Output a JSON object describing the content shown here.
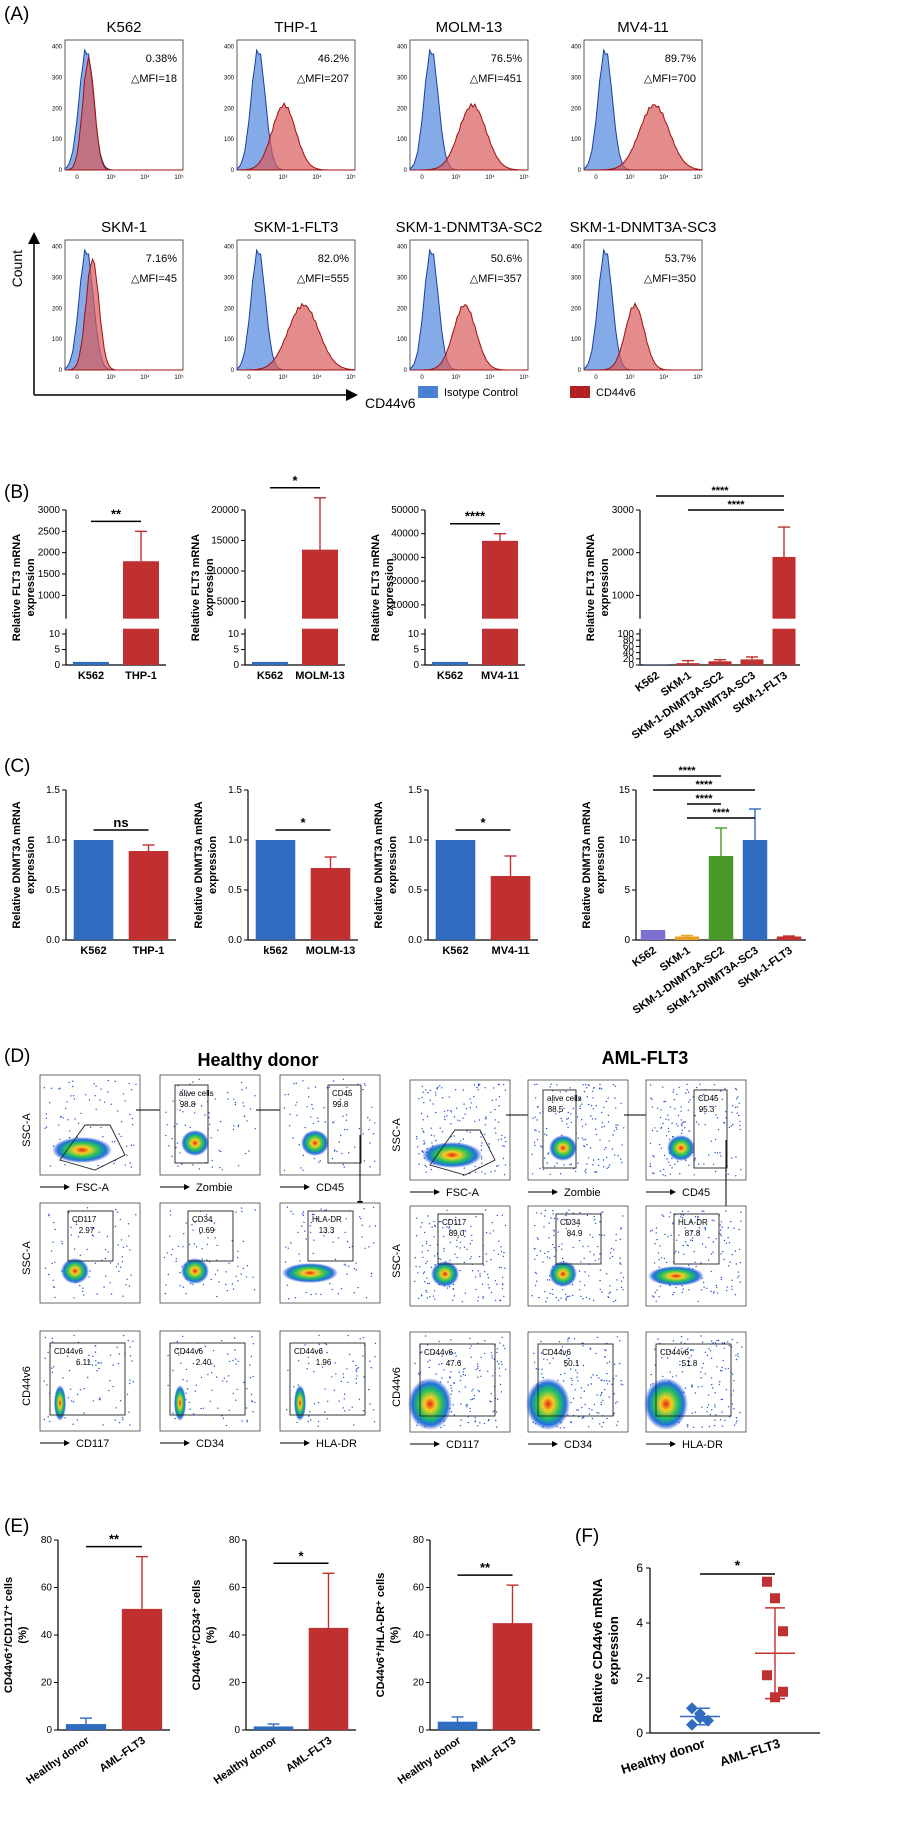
{
  "panels": {
    "A": "(A)",
    "B": "(B)",
    "C": "(C)",
    "D": "(D)",
    "E": "(E)",
    "F": "(F)"
  },
  "panel_a": {
    "cells": [
      {
        "name": "K562",
        "pct": "0.38%",
        "mfi": "△MFI=18",
        "shift": 0.0,
        "spread": 1.0
      },
      {
        "name": "THP-1",
        "pct": "46.2%",
        "mfi": "△MFI=207",
        "shift": 0.6,
        "spread": 1.4
      },
      {
        "name": "MOLM-13",
        "pct": "76.5%",
        "mfi": "△MFI=451",
        "shift": 1.0,
        "spread": 1.3
      },
      {
        "name": "MV4-11",
        "pct": "89.7%",
        "mfi": "△MFI=700",
        "shift": 1.2,
        "spread": 1.3
      },
      {
        "name": "SKM-1",
        "pct": "7.16%",
        "mfi": "△MFI=45",
        "shift": 0.1,
        "spread": 1.0
      },
      {
        "name": "SKM-1-FLT3",
        "pct": "82.0%",
        "mfi": "△MFI=555",
        "shift": 1.1,
        "spread": 1.5
      },
      {
        "name": "SKM-1-DNMT3A-SC2",
        "pct": "50.6%",
        "mfi": "△MFI=357",
        "shift": 0.8,
        "spread": 1.1
      },
      {
        "name": "SKM-1-DNMT3A-SC3",
        "pct": "53.7%",
        "mfi": "△MFI=350",
        "shift": 0.7,
        "spread": 0.9
      }
    ],
    "axis_y": "Count",
    "axis_x": "CD44v6",
    "legend": [
      {
        "label": "Isotype Control",
        "color": "#4a7fd1"
      },
      {
        "label": "CD44v6",
        "color": "#b22222"
      }
    ],
    "yticks": [
      "0",
      "100",
      "200",
      "300",
      "400"
    ],
    "xticks": [
      "0",
      "10³",
      "10⁴",
      "10⁵"
    ]
  },
  "chart_data": [
    {
      "type": "bar",
      "panel": "B1",
      "ylabel": "Relative FLT3 mRNA expression",
      "categories": [
        "K562",
        "THP-1"
      ],
      "values": [
        1,
        1800
      ],
      "errors": [
        0,
        700
      ],
      "sig": "**",
      "yticks_top": [
        "1000",
        "1500",
        "2000",
        "2500",
        "3000"
      ],
      "yticks_bottom": [
        "0",
        "5",
        "10"
      ]
    },
    {
      "type": "bar",
      "panel": "B2",
      "ylabel": "Relative FLT3 mRNA expression",
      "categories": [
        "K562",
        "MOLM-13"
      ],
      "values": [
        1,
        13500
      ],
      "errors": [
        0,
        8500
      ],
      "sig": "*",
      "yticks_top": [
        "5000",
        "10000",
        "15000",
        "20000"
      ],
      "yticks_bottom": [
        "0",
        "5",
        "10"
      ]
    },
    {
      "type": "bar",
      "panel": "B3",
      "ylabel": "Relative FLT3 mRNA expression",
      "categories": [
        "K562",
        "MV4-11"
      ],
      "values": [
        1,
        37000
      ],
      "errors": [
        0,
        3000
      ],
      "sig": "****",
      "yticks_top": [
        "10000",
        "20000",
        "30000",
        "40000",
        "50000"
      ],
      "yticks_bottom": [
        "0",
        "5",
        "10"
      ]
    },
    {
      "type": "bar",
      "panel": "B4",
      "ylabel": "Relative FLT3 mRNA expression",
      "categories": [
        "K562",
        "SKM-1",
        "SKM-1-DNMT3A-SC2",
        "SKM-1-DNMT3A-SC3",
        "SKM-1-FLT3"
      ],
      "values": [
        1,
        6,
        12,
        18,
        1900
      ],
      "errors": [
        0,
        8,
        5,
        8,
        700
      ],
      "sig": [
        "****",
        "****"
      ],
      "yticks_top": [
        "1000",
        "2000",
        "3000"
      ],
      "yticks_bottom": [
        "0",
        "20",
        "40",
        "60",
        "80",
        "100"
      ]
    },
    {
      "type": "bar",
      "panel": "C1",
      "ylabel": "Relative DNMT3A mRNA expression",
      "categories": [
        "K562",
        "THP-1"
      ],
      "values": [
        1.0,
        0.89
      ],
      "errors": [
        0,
        0.06
      ],
      "sig": "ns",
      "ylim": [
        0,
        1.5
      ],
      "yticks": [
        "0.0",
        "0.5",
        "1.0",
        "1.5"
      ],
      "colors": [
        "#2f6bbf",
        "#c03030"
      ]
    },
    {
      "type": "bar",
      "panel": "C2",
      "ylabel": "Relative DNMT3A mRNA expression",
      "categories": [
        "k562",
        "MOLM-13"
      ],
      "values": [
        1.0,
        0.72
      ],
      "errors": [
        0,
        0.11
      ],
      "sig": "*",
      "ylim": [
        0,
        1.5
      ],
      "yticks": [
        "0.0",
        "0.5",
        "1.0",
        "1.5"
      ],
      "colors": [
        "#2f6bbf",
        "#c03030"
      ]
    },
    {
      "type": "bar",
      "panel": "C3",
      "ylabel": "Relative DNMT3A mRNA expression",
      "categories": [
        "K562",
        "MV4-11"
      ],
      "values": [
        1.0,
        0.64
      ],
      "errors": [
        0,
        0.2
      ],
      "sig": "*",
      "ylim": [
        0,
        1.5
      ],
      "yticks": [
        "0.0",
        "0.5",
        "1.0",
        "1.5"
      ],
      "colors": [
        "#2f6bbf",
        "#c03030"
      ]
    },
    {
      "type": "bar",
      "panel": "C4",
      "ylabel": "Relative DNMT3A mRNA expression",
      "categories": [
        "K562",
        "SKM-1",
        "SKM-1-DNMT3A-SC2",
        "SKM-1-DNMT3A-SC3",
        "SKM-1-FLT3"
      ],
      "values": [
        1.0,
        0.35,
        8.4,
        10.0,
        0.35
      ],
      "errors": [
        0,
        0.1,
        2.8,
        3.1,
        0.05
      ],
      "sig": [
        "****",
        "****",
        "****",
        "****"
      ],
      "ylim": [
        0,
        15
      ],
      "yticks": [
        "0",
        "5",
        "10",
        "15"
      ],
      "colors": [
        "#7b6fd1",
        "#e6a020",
        "#4a9a2a",
        "#2f6bbf",
        "#c03030"
      ]
    },
    {
      "type": "bar",
      "panel": "E1",
      "ylabel": "CD44v6⁺/CD117⁺ cells (%)",
      "categories": [
        "Healthy donor",
        "AML-FLT3"
      ],
      "values": [
        2.5,
        51
      ],
      "errors": [
        2.5,
        22
      ],
      "sig": "**",
      "ylim": [
        0,
        80
      ],
      "yticks": [
        "0",
        "20",
        "40",
        "60",
        "80"
      ],
      "colors": [
        "#2f6bbf",
        "#c03030"
      ]
    },
    {
      "type": "bar",
      "panel": "E2",
      "ylabel": "CD44v6⁺/CD34⁺ cells (%)",
      "categories": [
        "Healthy donor",
        "AML-FLT3"
      ],
      "values": [
        1.5,
        43
      ],
      "errors": [
        1.0,
        23
      ],
      "sig": "*",
      "ylim": [
        0,
        80
      ],
      "yticks": [
        "0",
        "20",
        "40",
        "60",
        "80"
      ],
      "colors": [
        "#2f6bbf",
        "#c03030"
      ]
    },
    {
      "type": "bar",
      "panel": "E3",
      "ylabel": "CD44v6⁺/HLA-DR⁺ cells (%)",
      "categories": [
        "Healthy donor",
        "AML-FLT3"
      ],
      "values": [
        3.5,
        45
      ],
      "errors": [
        2.0,
        16
      ],
      "sig": "**",
      "ylim": [
        0,
        80
      ],
      "yticks": [
        "0",
        "20",
        "40",
        "60",
        "80"
      ],
      "colors": [
        "#2f6bbf",
        "#c03030"
      ]
    },
    {
      "type": "scatter",
      "panel": "F",
      "ylabel": "Relative CD44v6 mRNA expression",
      "categories": [
        "Healthy donor",
        "AML-FLT3"
      ],
      "points": [
        [
          0.9,
          0.7,
          0.45,
          0.3,
          0.55
        ],
        [
          5.5,
          4.9,
          3.7,
          2.1,
          1.3,
          1.5
        ]
      ],
      "means": [
        0.6,
        2.9
      ],
      "sds": [
        0.3,
        1.65
      ],
      "sig": "*",
      "ylim": [
        0,
        6
      ],
      "yticks": [
        "0",
        "2",
        "4",
        "6"
      ],
      "colors": [
        "#2f6bbf",
        "#c03030"
      ]
    }
  ],
  "panel_d": {
    "healthy_title": "Healthy donor",
    "aml_title": "AML-FLT3",
    "healthy_plots": [
      {
        "gate": "",
        "val": "",
        "xl": "FSC-A",
        "yl": "SSC-A"
      },
      {
        "gate": "alive cells",
        "val": "98.8",
        "xl": "Zombie",
        "yl": ""
      },
      {
        "gate": "CD45",
        "val": "99.8",
        "xl": "CD45",
        "yl": ""
      },
      {
        "gate": "CD117",
        "val": "2.97",
        "xl": "",
        "yl": "SSC-A"
      },
      {
        "gate": "CD34",
        "val": "0.69",
        "xl": "",
        "yl": ""
      },
      {
        "gate": "HLA-DR",
        "val": "13.3",
        "xl": "",
        "yl": ""
      },
      {
        "gate": "CD44v6",
        "val": "6.11",
        "xl": "CD117",
        "yl": "CD44v6"
      },
      {
        "gate": "CD44v6",
        "val": "2.40",
        "xl": "CD34",
        "yl": ""
      },
      {
        "gate": "CD44v6",
        "val": "1.96",
        "xl": "HLA-DR",
        "yl": ""
      }
    ],
    "aml_plots": [
      {
        "gate": "",
        "val": "",
        "xl": "FSC-A",
        "yl": "SSC-A"
      },
      {
        "gate": "alive cells",
        "val": "88.5",
        "xl": "Zombie",
        "yl": ""
      },
      {
        "gate": "CD45",
        "val": "95.3",
        "xl": "CD45",
        "yl": ""
      },
      {
        "gate": "CD117",
        "val": "89.0",
        "xl": "",
        "yl": "SSC-A"
      },
      {
        "gate": "CD34",
        "val": "84.9",
        "xl": "",
        "yl": ""
      },
      {
        "gate": "HLA-DR",
        "val": "87.8",
        "xl": "",
        "yl": ""
      },
      {
        "gate": "CD44v6",
        "val": "47.6",
        "xl": "CD117",
        "yl": "CD44v6"
      },
      {
        "gate": "CD44v6",
        "val": "50.1",
        "xl": "CD34",
        "yl": ""
      },
      {
        "gate": "CD44v6",
        "val": "51.8",
        "xl": "HLA-DR",
        "yl": ""
      }
    ]
  }
}
